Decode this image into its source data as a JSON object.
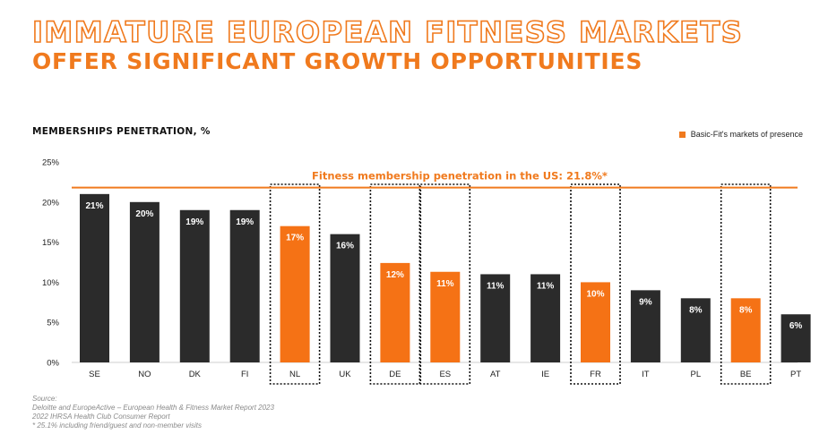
{
  "header": {
    "title_line1": "IMMATURE EUROPEAN FITNESS MARKETS",
    "title_line2": "OFFER SIGNIFICANT GROWTH OPPORTUNITIES"
  },
  "colors": {
    "accent": "#f07a1e",
    "bar_default": "#2b2b2b",
    "bar_highlight": "#f57215"
  },
  "chart_data": {
    "type": "bar",
    "title": "MEMBERSHIPS PENETRATION, %",
    "categories": [
      "SE",
      "NO",
      "DK",
      "FI",
      "NL",
      "UK",
      "DE",
      "ES",
      "AT",
      "IE",
      "FR",
      "IT",
      "PL",
      "BE",
      "PT"
    ],
    "values": [
      21,
      20,
      19,
      19,
      17,
      16,
      12.4,
      11.3,
      11,
      11,
      10,
      9,
      8,
      8,
      6
    ],
    "data_labels": [
      "21%",
      "20%",
      "19%",
      "19%",
      "17%",
      "16%",
      "12%",
      "11%",
      "11%",
      "11%",
      "10%",
      "9%",
      "8%",
      "8%",
      "6%"
    ],
    "highlighted": [
      "NL",
      "DE",
      "ES",
      "FR",
      "BE"
    ],
    "y_ticks": [
      "0%",
      "5%",
      "10%",
      "15%",
      "20%",
      "25%"
    ],
    "ylim": [
      0,
      25
    ],
    "grid": false,
    "reference_line": {
      "value": 21.8,
      "label": "Fitness membership penetration in the US: 21.8%*"
    },
    "legend": {
      "label": "Basic-Fit's markets of presence",
      "position": "top-right"
    }
  },
  "source": {
    "lines": [
      "Source:",
      "Deloitte and EuropeActive – European Health & Fitness Market Report 2023",
      "2022 IHRSA Health Club Consumer Report",
      "* 25.1% including friend/guest and non-member visits"
    ]
  }
}
